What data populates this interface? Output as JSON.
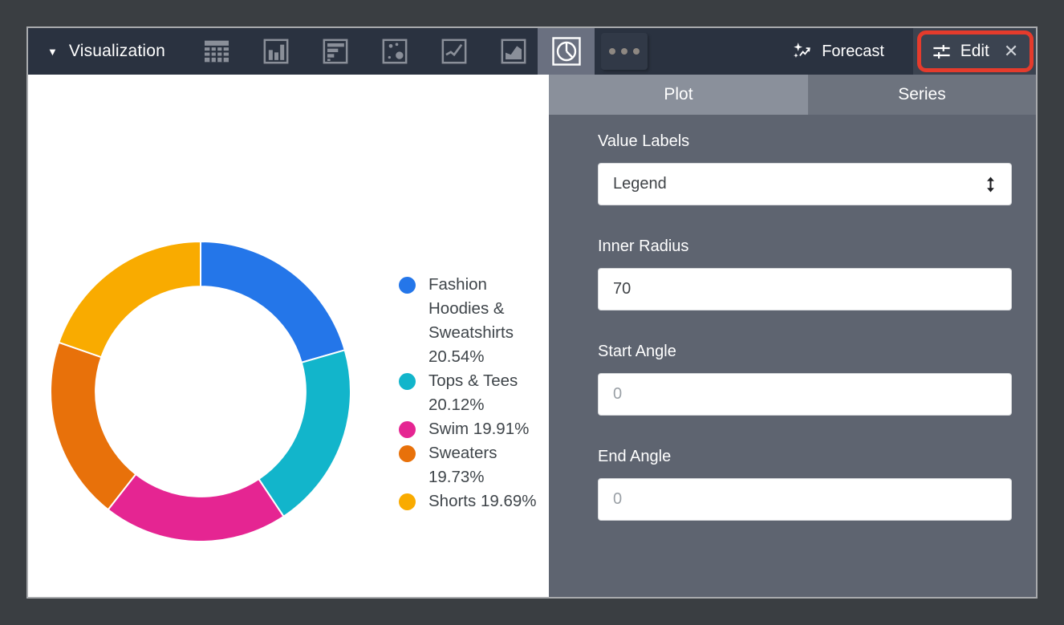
{
  "toolbar": {
    "title": "Visualization",
    "chart_type_icons": [
      "table",
      "column",
      "bar",
      "scatter",
      "line",
      "area"
    ],
    "selected_chart_type": "pie",
    "more_label": "more-options",
    "forecast_label": "Forecast",
    "edit_label": "Edit",
    "close_label": "close"
  },
  "panel": {
    "tabs": [
      {
        "label": "Plot",
        "active": true
      },
      {
        "label": "Series",
        "active": false
      }
    ],
    "fields": [
      {
        "label": "Value Labels",
        "type": "select",
        "value": "Legend"
      },
      {
        "label": "Inner Radius",
        "type": "input",
        "value": "70"
      },
      {
        "label": "Start Angle",
        "type": "input",
        "placeholder": "0"
      },
      {
        "label": "End Angle",
        "type": "input",
        "placeholder": "0"
      }
    ]
  },
  "chart_data": {
    "type": "pie",
    "donut": true,
    "inner_radius_pct": 70,
    "start_angle": 0,
    "legend_position": "right",
    "categories": [
      "Fashion Hoodies & Sweatshirts",
      "Tops & Tees",
      "Swim",
      "Sweaters",
      "Shorts"
    ],
    "values": [
      20.54,
      20.12,
      19.91,
      19.73,
      19.69
    ],
    "unit": "%",
    "colors": [
      "#2476E9",
      "#12B5CB",
      "#E52592",
      "#E8710A",
      "#F9AB00"
    ],
    "slice_gap_color": "#FFFFFF"
  },
  "style": {
    "annotation_red": "#E53B2C",
    "toolbar_bg": "#2A3240",
    "panel_bg": "#5E6470",
    "tab_active_bg": "#8A909B",
    "tab_inactive_bg": "#6D737E"
  }
}
